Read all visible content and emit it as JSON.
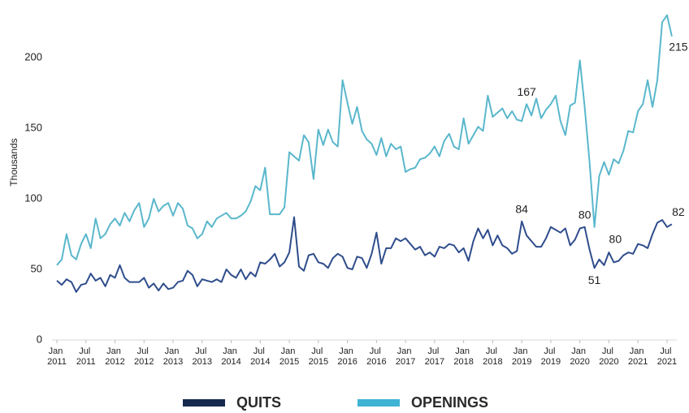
{
  "chart_data": {
    "type": "line",
    "y_label": "Thousands",
    "categories": [
      "Jan 2011",
      null,
      null,
      null,
      null,
      null,
      "Jul 2011",
      null,
      null,
      null,
      null,
      null,
      "Jan 2012",
      null,
      null,
      null,
      null,
      null,
      "Jul 2012",
      null,
      null,
      null,
      null,
      null,
      "Jan 2013",
      null,
      null,
      null,
      null,
      null,
      "Jul 2013",
      null,
      null,
      null,
      null,
      null,
      "Jan 2014",
      null,
      null,
      null,
      null,
      null,
      "Jul 2014",
      null,
      null,
      null,
      null,
      null,
      "Jan 2015",
      null,
      null,
      null,
      null,
      null,
      "Jul 2015",
      null,
      null,
      null,
      null,
      null,
      "Jan 2016",
      null,
      null,
      null,
      null,
      null,
      "Jul 2016",
      null,
      null,
      null,
      null,
      null,
      "Jan 2017",
      null,
      null,
      null,
      null,
      null,
      "Jul 2017",
      null,
      null,
      null,
      null,
      null,
      "Jan 2018",
      null,
      null,
      null,
      null,
      null,
      "Jul 2018",
      null,
      null,
      null,
      null,
      null,
      "Jan 2019",
      null,
      null,
      null,
      null,
      null,
      "Jul 2019",
      null,
      null,
      null,
      null,
      null,
      "Jan 2020",
      null,
      null,
      null,
      null,
      null,
      "Jul 2020",
      null,
      null,
      null,
      null,
      null,
      "Jan 2021",
      null,
      null,
      null,
      null,
      null,
      "Jul 2021",
      null
    ],
    "series": [
      {
        "name": "QUITS",
        "color": "#2f4d8c",
        "legend_color": "#15294f",
        "values": [
          42,
          39,
          43,
          41,
          34,
          39,
          40,
          47,
          42,
          44,
          38,
          46,
          44,
          53,
          44,
          41,
          41,
          41,
          44,
          37,
          40,
          35,
          40,
          36,
          37,
          41,
          42,
          49,
          46,
          38,
          43,
          42,
          41,
          43,
          41,
          50,
          46,
          44,
          50,
          43,
          48,
          45,
          55,
          54,
          57,
          61,
          52,
          55,
          62,
          87,
          52,
          49,
          60,
          61,
          55,
          54,
          51,
          58,
          61,
          59,
          51,
          50,
          59,
          58,
          51,
          61,
          76,
          54,
          65,
          65,
          72,
          70,
          72,
          68,
          64,
          66,
          60,
          62,
          59,
          66,
          65,
          68,
          67,
          62,
          65,
          56,
          70,
          79,
          72,
          78,
          67,
          74,
          67,
          65,
          61,
          63,
          84,
          74,
          70,
          66,
          66,
          72,
          80,
          78,
          76,
          79,
          67,
          71,
          79,
          80,
          64,
          51,
          57,
          53,
          62,
          55,
          56,
          60,
          62,
          61,
          68,
          67,
          65,
          75,
          83,
          85,
          80,
          82
        ],
        "value_labels": [
          null,
          null,
          null,
          null,
          null,
          null,
          null,
          null,
          null,
          null,
          null,
          null,
          null,
          null,
          null,
          null,
          null,
          null,
          null,
          null,
          null,
          null,
          null,
          null,
          null,
          null,
          null,
          null,
          null,
          null,
          null,
          null,
          null,
          null,
          null,
          null,
          null,
          null,
          null,
          null,
          null,
          null,
          null,
          null,
          null,
          null,
          null,
          null,
          null,
          null,
          null,
          null,
          null,
          null,
          null,
          null,
          null,
          null,
          null,
          null,
          null,
          null,
          null,
          null,
          null,
          null,
          null,
          null,
          null,
          null,
          null,
          null,
          null,
          null,
          null,
          null,
          null,
          null,
          null,
          null,
          null,
          null,
          null,
          null,
          null,
          null,
          null,
          null,
          null,
          null,
          null,
          null,
          null,
          null,
          null,
          null,
          "84",
          null,
          null,
          null,
          null,
          null,
          null,
          null,
          null,
          null,
          null,
          null,
          null,
          "80",
          null,
          "51",
          null,
          null,
          null,
          null,
          null,
          null,
          null,
          null,
          null,
          null,
          null,
          null,
          null,
          null,
          null,
          "82"
        ]
      },
      {
        "name": "OPENINGS",
        "color": "#5ab7cc",
        "legend_color": "#3fb3d3",
        "values": [
          53,
          57,
          75,
          60,
          57,
          68,
          75,
          65,
          86,
          72,
          75,
          82,
          86,
          81,
          90,
          84,
          92,
          97,
          80,
          86,
          100,
          91,
          95,
          97,
          88,
          97,
          93,
          81,
          79,
          72,
          75,
          84,
          80,
          86,
          88,
          90,
          86,
          86,
          88,
          91,
          98,
          109,
          106,
          122,
          89,
          89,
          89,
          94,
          133,
          130,
          127,
          145,
          140,
          114,
          149,
          138,
          149,
          140,
          137,
          184,
          168,
          153,
          165,
          148,
          142,
          139,
          131,
          143,
          130,
          139,
          135,
          137,
          119,
          121,
          122,
          128,
          129,
          132,
          137,
          130,
          141,
          146,
          137,
          135,
          157,
          139,
          145,
          151,
          148,
          173,
          158,
          161,
          164,
          157,
          162,
          156,
          155,
          167,
          159,
          171,
          157,
          163,
          167,
          173,
          155,
          145,
          166,
          168,
          198,
          165,
          126,
          80,
          116,
          126,
          117,
          128,
          125,
          134,
          148,
          147,
          162,
          167,
          184,
          165,
          184,
          225,
          230,
          215
        ],
        "value_labels": [
          null,
          null,
          null,
          null,
          null,
          null,
          null,
          null,
          null,
          null,
          null,
          null,
          null,
          null,
          null,
          null,
          null,
          null,
          null,
          null,
          null,
          null,
          null,
          null,
          null,
          null,
          null,
          null,
          null,
          null,
          null,
          null,
          null,
          null,
          null,
          null,
          null,
          null,
          null,
          null,
          null,
          null,
          null,
          null,
          null,
          null,
          null,
          null,
          null,
          null,
          null,
          null,
          null,
          null,
          null,
          null,
          null,
          null,
          null,
          null,
          null,
          null,
          null,
          null,
          null,
          null,
          null,
          null,
          null,
          null,
          null,
          null,
          null,
          null,
          null,
          null,
          null,
          null,
          null,
          null,
          null,
          null,
          null,
          null,
          null,
          null,
          null,
          null,
          null,
          null,
          null,
          null,
          null,
          null,
          null,
          null,
          null,
          "167",
          null,
          null,
          null,
          null,
          null,
          null,
          null,
          null,
          null,
          null,
          null,
          null,
          null,
          "80",
          null,
          null,
          null,
          null,
          null,
          null,
          null,
          null,
          null,
          null,
          null,
          null,
          null,
          null,
          null,
          "215"
        ]
      }
    ],
    "ylim": [
      0,
      235
    ],
    "yticks": [
      0,
      50,
      100,
      150,
      200
    ],
    "grid": false,
    "legend": "bottom"
  }
}
